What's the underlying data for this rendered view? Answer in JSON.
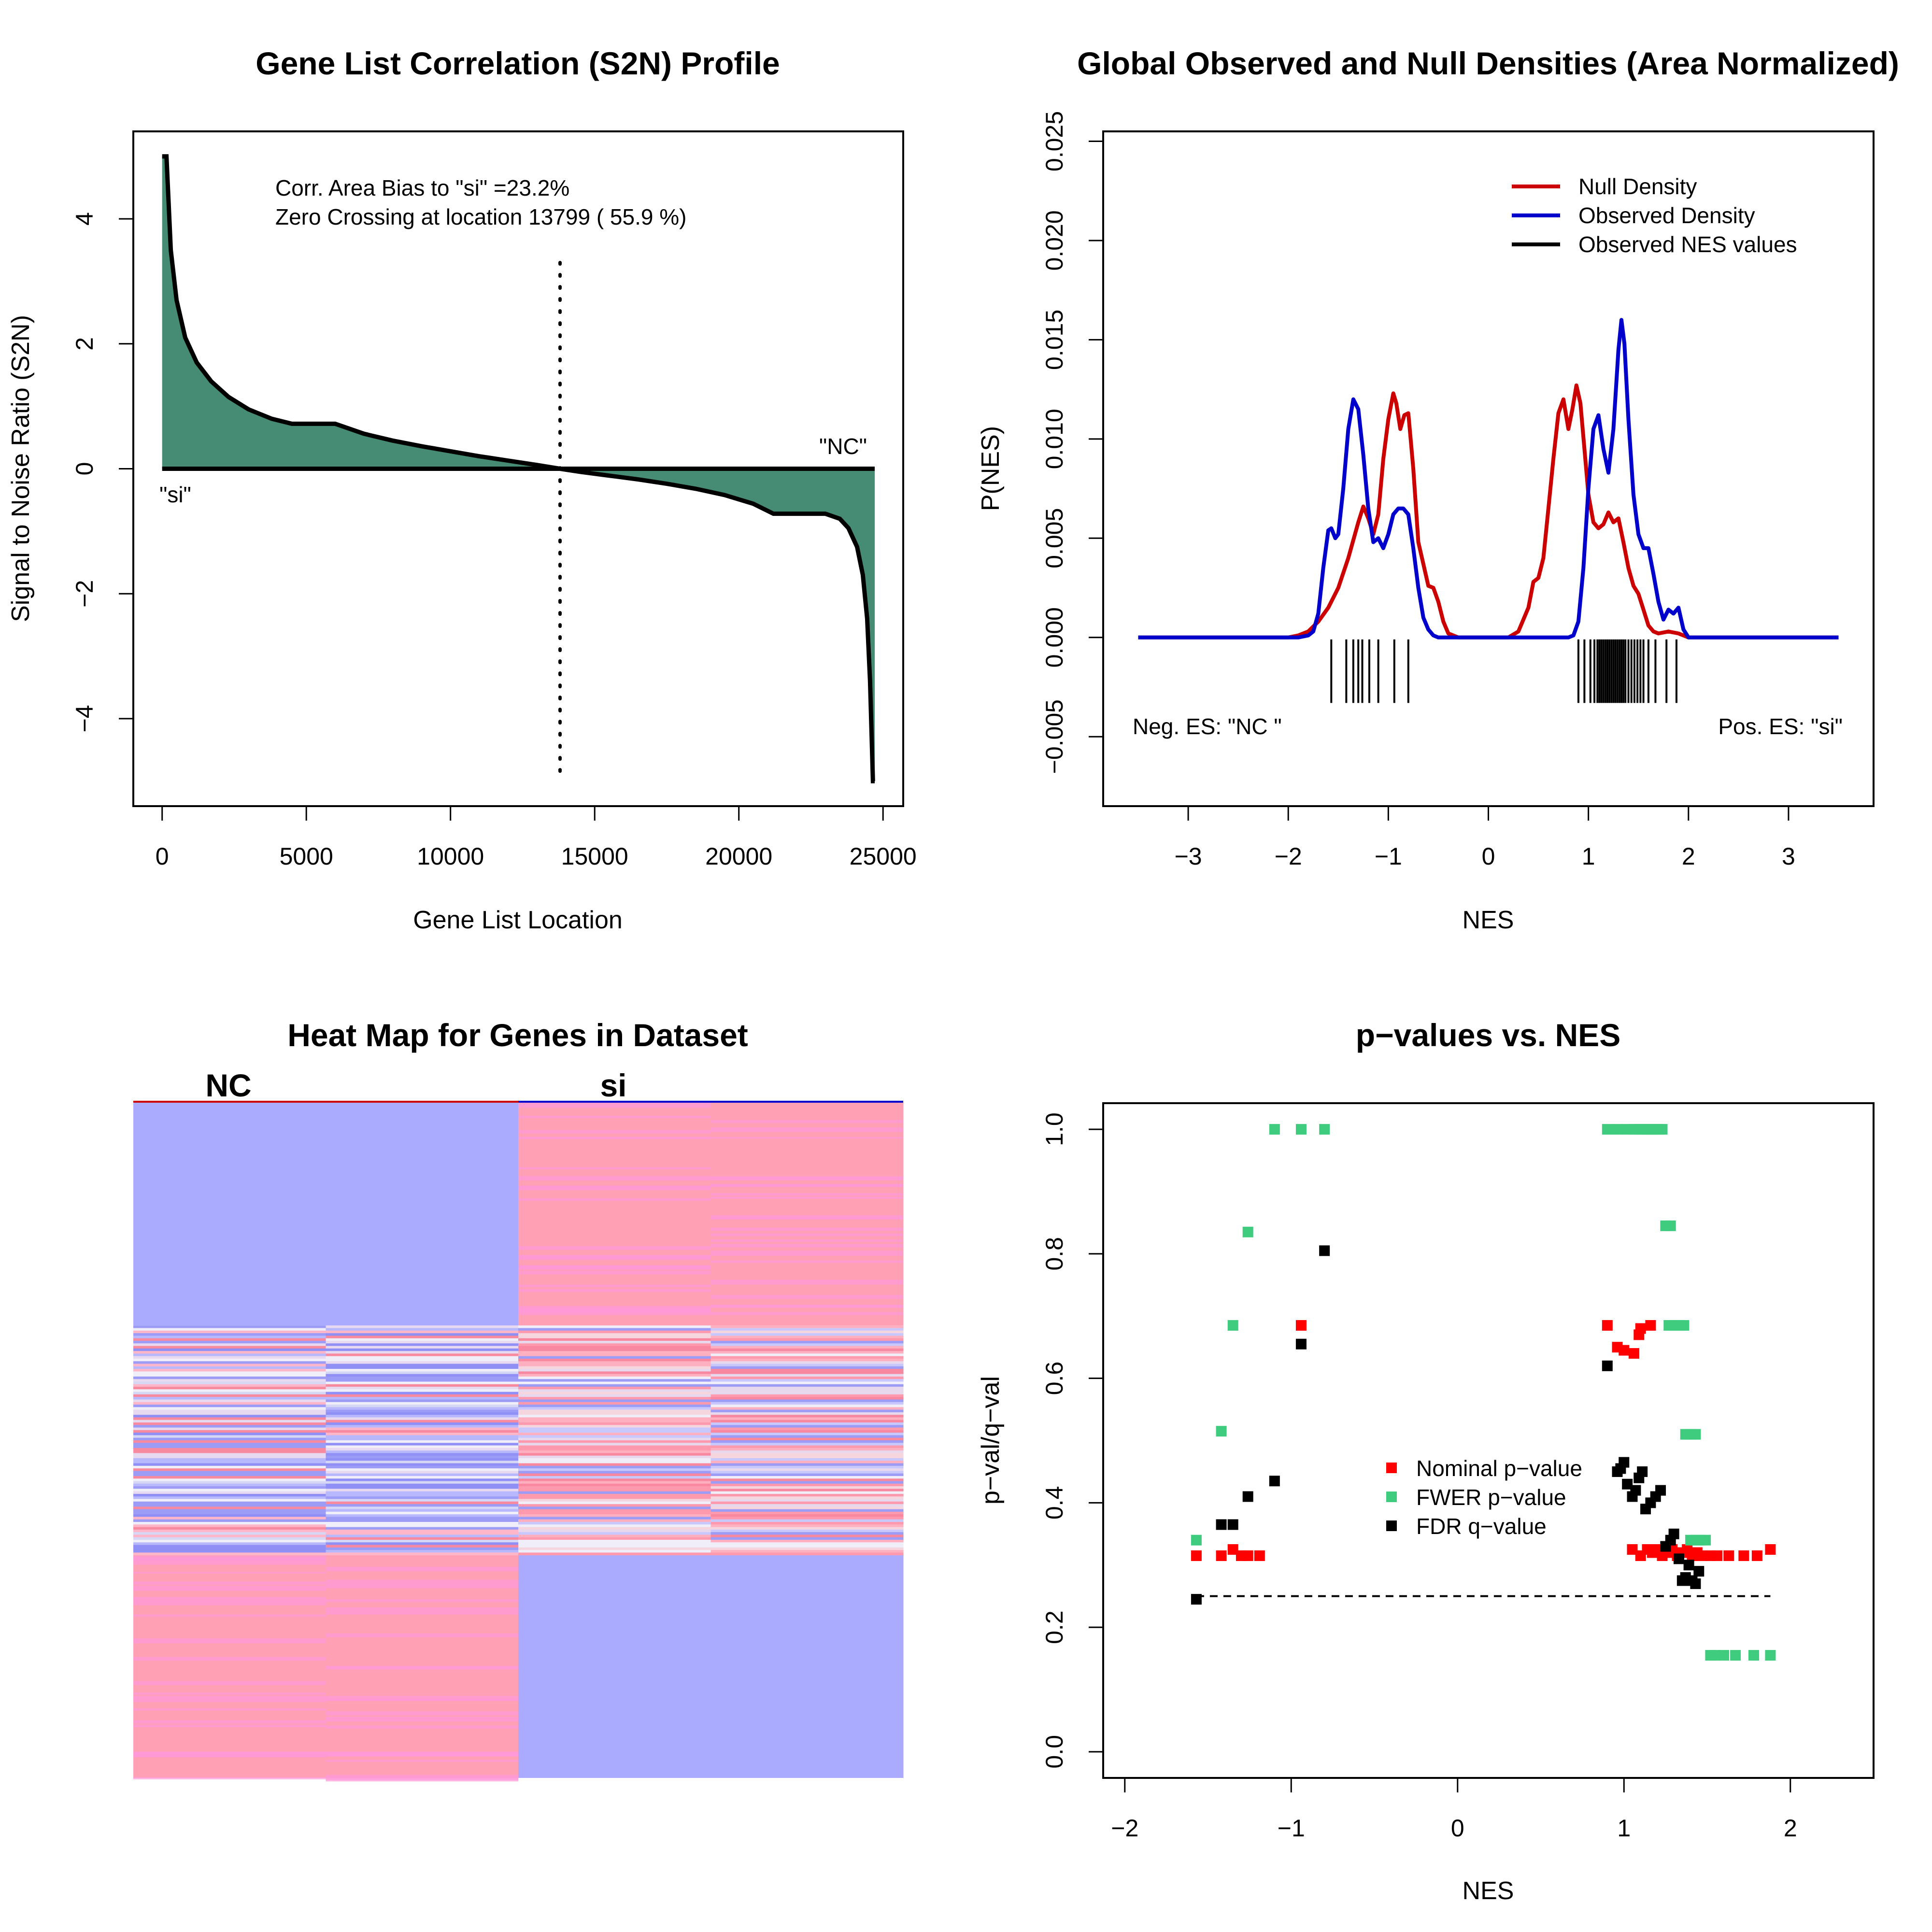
{
  "colors": {
    "area_fill": "#468b73",
    "null_density": "#cc0000",
    "observed_density": "#0000cc",
    "nominal": "#ff0000",
    "fwer": "#3fcc7f",
    "fdr": "#000000",
    "heat_blue": "#aaaaff",
    "heat_red": "#ffa0b4",
    "heat_pink": "#ff99d9",
    "heat_white": "#f0eef8"
  },
  "chart_data": [
    {
      "id": "s2n",
      "type": "area",
      "title": "Gene List Correlation (S2N) Profile",
      "xlabel": "Gene List Location",
      "ylabel": "Signal to Noise Ratio (S2N)",
      "xlim": [
        -1000,
        25700
      ],
      "ylim": [
        -5.4,
        5.4
      ],
      "xticks": [
        0,
        5000,
        10000,
        15000,
        20000,
        25000
      ],
      "yticks": [
        -4,
        -2,
        0,
        2,
        4
      ],
      "x": [
        0,
        150,
        300,
        500,
        800,
        1200,
        1700,
        2300,
        3000,
        3800,
        4500,
        5000,
        5500,
        6000,
        7000,
        8000,
        9000,
        10000,
        11000,
        12000,
        13000,
        13799,
        14500,
        15500,
        16500,
        17500,
        18500,
        19500,
        20500,
        21200,
        22000,
        23000,
        23500,
        23800,
        24100,
        24300,
        24450,
        24550,
        24650,
        24712
      ],
      "y": [
        5.0,
        5.0,
        3.5,
        2.7,
        2.1,
        1.7,
        1.4,
        1.15,
        0.95,
        0.8,
        0.72,
        0.72,
        0.72,
        0.72,
        0.56,
        0.45,
        0.36,
        0.28,
        0.2,
        0.13,
        0.06,
        0.0,
        -0.05,
        -0.11,
        -0.17,
        -0.24,
        -0.32,
        -0.42,
        -0.56,
        -0.72,
        -0.72,
        -0.72,
        -0.8,
        -0.95,
        -1.25,
        -1.7,
        -2.4,
        -3.4,
        -5.0,
        -5.0
      ],
      "zero_crossing": 13799,
      "annotations": [
        "Corr. Area Bias to \"si\" =23.2%",
        "Zero Crossing at location  13799  ( 55.9  %)"
      ],
      "labels": {
        "left": "\"si\"",
        "right": "\"NC\""
      }
    },
    {
      "id": "densities",
      "type": "line",
      "title": "Global Observed and Null Densities (Area Normalized)",
      "xlabel": "NES",
      "ylabel": "P(NES)",
      "xlim": [
        -3.85,
        3.85
      ],
      "ylim": [
        -0.0085,
        0.0255
      ],
      "xticks": [
        -3,
        -2,
        -1,
        0,
        1,
        2,
        3
      ],
      "yticks": [
        -0.005,
        0.0,
        0.005,
        0.01,
        0.015,
        0.02,
        0.025
      ],
      "ytick_labels": [
        "−0.005",
        "0.000",
        "0.005",
        "0.010",
        "0.015",
        "0.020",
        "0.025"
      ],
      "series": [
        {
          "name": "Null Density",
          "x": [
            -3.5,
            -2.0,
            -1.9,
            -1.8,
            -1.7,
            -1.6,
            -1.5,
            -1.4,
            -1.3,
            -1.25,
            -1.2,
            -1.15,
            -1.1,
            -1.05,
            -1.0,
            -0.95,
            -0.92,
            -0.88,
            -0.84,
            -0.8,
            -0.75,
            -0.7,
            -0.65,
            -0.6,
            -0.55,
            -0.5,
            -0.45,
            -0.4,
            -0.3,
            -0.2,
            0.2,
            0.3,
            0.4,
            0.45,
            0.5,
            0.55,
            0.6,
            0.65,
            0.7,
            0.75,
            0.8,
            0.84,
            0.88,
            0.92,
            0.96,
            1.0,
            1.05,
            1.1,
            1.15,
            1.2,
            1.25,
            1.3,
            1.35,
            1.4,
            1.45,
            1.5,
            1.55,
            1.6,
            1.65,
            1.7,
            1.8,
            1.9,
            2.0,
            3.5
          ],
          "y": [
            0.0,
            0.0,
            0.0001,
            0.0003,
            0.0008,
            0.0015,
            0.0025,
            0.004,
            0.0058,
            0.0066,
            0.006,
            0.0052,
            0.0062,
            0.009,
            0.011,
            0.0123,
            0.0118,
            0.0105,
            0.0112,
            0.0113,
            0.0085,
            0.0048,
            0.0037,
            0.0026,
            0.0025,
            0.0018,
            0.0008,
            0.0002,
            0.0,
            0.0,
            0.0,
            0.0003,
            0.0015,
            0.0028,
            0.003,
            0.004,
            0.0065,
            0.009,
            0.0113,
            0.012,
            0.0105,
            0.0115,
            0.0127,
            0.0118,
            0.0095,
            0.0072,
            0.0058,
            0.0055,
            0.0057,
            0.0063,
            0.0058,
            0.006,
            0.0048,
            0.0035,
            0.0026,
            0.0022,
            0.0014,
            0.0006,
            0.0003,
            0.0002,
            0.0003,
            0.0002,
            0.0,
            0.0
          ]
        },
        {
          "name": "Observed Density",
          "x": [
            -3.5,
            -1.9,
            -1.8,
            -1.75,
            -1.7,
            -1.65,
            -1.6,
            -1.57,
            -1.53,
            -1.5,
            -1.45,
            -1.4,
            -1.35,
            -1.3,
            -1.25,
            -1.2,
            -1.15,
            -1.1,
            -1.05,
            -1.0,
            -0.95,
            -0.9,
            -0.85,
            -0.8,
            -0.75,
            -0.7,
            -0.65,
            -0.6,
            -0.55,
            -0.5,
            -0.45,
            -0.4,
            0.7,
            0.8,
            0.85,
            0.9,
            0.95,
            1.0,
            1.05,
            1.1,
            1.15,
            1.2,
            1.25,
            1.3,
            1.33,
            1.36,
            1.4,
            1.45,
            1.5,
            1.55,
            1.6,
            1.65,
            1.7,
            1.75,
            1.8,
            1.85,
            1.9,
            1.95,
            2.0,
            3.5
          ],
          "y": [
            0.0,
            0.0,
            0.0001,
            0.0003,
            0.0012,
            0.0035,
            0.0054,
            0.0055,
            0.005,
            0.0052,
            0.0075,
            0.0105,
            0.012,
            0.0115,
            0.0092,
            0.0065,
            0.0048,
            0.005,
            0.0045,
            0.0052,
            0.0062,
            0.0065,
            0.0065,
            0.0062,
            0.0045,
            0.0025,
            0.001,
            0.0004,
            0.0001,
            0.0,
            0.0,
            0.0,
            0.0,
            0.0,
            0.0001,
            0.0008,
            0.0035,
            0.0075,
            0.0105,
            0.0112,
            0.0095,
            0.0083,
            0.0105,
            0.0145,
            0.016,
            0.0148,
            0.011,
            0.0072,
            0.0052,
            0.0045,
            0.0045,
            0.0032,
            0.0018,
            0.0009,
            0.0014,
            0.0012,
            0.0015,
            0.0004,
            0.0,
            0.0
          ]
        }
      ],
      "observed_nes": [
        -1.57,
        -1.42,
        -1.35,
        -1.3,
        -1.26,
        -1.19,
        -1.1,
        -0.94,
        -0.8,
        0.9,
        0.96,
        1.02,
        1.06,
        1.09,
        1.11,
        1.13,
        1.15,
        1.17,
        1.19,
        1.21,
        1.23,
        1.25,
        1.27,
        1.29,
        1.31,
        1.33,
        1.35,
        1.37,
        1.4,
        1.43,
        1.46,
        1.49,
        1.52,
        1.55,
        1.6,
        1.67,
        1.78,
        1.88
      ],
      "legend": [
        "Null Density",
        "Observed Density",
        "Observed NES values"
      ],
      "legend_position": "top-right",
      "annotations": {
        "left": "Neg. ES: \"NC \"",
        "right": "Pos. ES: \"si\""
      }
    },
    {
      "id": "heatmap",
      "type": "heatmap",
      "title": "Heat Map for Genes in Dataset",
      "column_groups": [
        {
          "label": "NC",
          "color": "#cc0000"
        },
        {
          "label": "si",
          "color": "#0000cc"
        }
      ],
      "columns": 4,
      "blocks": [
        {
          "rows": 0.33,
          "pattern": [
            "blue",
            "blue",
            "red",
            "red"
          ]
        },
        {
          "rows": 0.34,
          "pattern": [
            "mixed",
            "mixed",
            "mixed",
            "mixed"
          ]
        },
        {
          "rows": 0.33,
          "pattern": [
            "red",
            "red",
            "blue",
            "blue"
          ]
        }
      ]
    },
    {
      "id": "pvals",
      "type": "scatter",
      "title": "p−values vs. NES",
      "xlabel": "NES",
      "ylabel": "p−val/q−val",
      "xlim": [
        -2.13,
        2.5
      ],
      "ylim": [
        -0.042,
        1.042
      ],
      "xticks": [
        -2,
        -1,
        0,
        1,
        2
      ],
      "yticks": [
        0.0,
        0.2,
        0.4,
        0.6,
        0.8,
        1.0
      ],
      "threshold": {
        "y": 0.25,
        "x": [
          -1.57,
          1.88
        ]
      },
      "legend": [
        "Nominal p−value",
        "FWER p−value",
        "FDR q−value"
      ],
      "legend_position": "center",
      "series": [
        {
          "name": "Nominal p−value",
          "points": [
            [
              -1.57,
              0.315
            ],
            [
              -1.42,
              0.315
            ],
            [
              -1.35,
              0.325
            ],
            [
              -1.3,
              0.315
            ],
            [
              -1.26,
              0.315
            ],
            [
              -1.19,
              0.315
            ],
            [
              -0.94,
              0.685
            ],
            [
              0.9,
              0.685
            ],
            [
              0.96,
              0.65
            ],
            [
              1.0,
              0.645
            ],
            [
              1.06,
              0.64
            ],
            [
              1.09,
              0.67
            ],
            [
              1.1,
              0.68
            ],
            [
              1.16,
              0.685
            ],
            [
              1.05,
              0.325
            ],
            [
              1.1,
              0.315
            ],
            [
              1.14,
              0.325
            ],
            [
              1.17,
              0.32
            ],
            [
              1.2,
              0.325
            ],
            [
              1.23,
              0.315
            ],
            [
              1.26,
              0.32
            ],
            [
              1.29,
              0.325
            ],
            [
              1.32,
              0.315
            ],
            [
              1.35,
              0.32
            ],
            [
              1.38,
              0.325
            ],
            [
              1.41,
              0.315
            ],
            [
              1.44,
              0.32
            ],
            [
              1.47,
              0.315
            ],
            [
              1.52,
              0.315
            ],
            [
              1.56,
              0.315
            ],
            [
              1.63,
              0.315
            ],
            [
              1.72,
              0.315
            ],
            [
              1.8,
              0.315
            ],
            [
              1.88,
              0.325
            ]
          ]
        },
        {
          "name": "FWER p−value",
          "points": [
            [
              -1.57,
              0.34
            ],
            [
              -1.42,
              0.515
            ],
            [
              -1.35,
              0.685
            ],
            [
              -1.26,
              0.835
            ],
            [
              -1.1,
              1.0
            ],
            [
              -0.94,
              1.0
            ],
            [
              -0.8,
              1.0
            ],
            [
              0.9,
              1.0
            ],
            [
              0.96,
              1.0
            ],
            [
              1.02,
              1.0
            ],
            [
              1.06,
              1.0
            ],
            [
              1.09,
              1.0
            ],
            [
              1.11,
              1.0
            ],
            [
              1.13,
              1.0
            ],
            [
              1.15,
              1.0
            ],
            [
              1.17,
              1.0
            ],
            [
              1.19,
              1.0
            ],
            [
              1.21,
              1.0
            ],
            [
              1.23,
              1.0
            ],
            [
              1.25,
              0.845
            ],
            [
              1.28,
              0.845
            ],
            [
              1.27,
              0.685
            ],
            [
              1.3,
              0.685
            ],
            [
              1.33,
              0.685
            ],
            [
              1.36,
              0.685
            ],
            [
              1.37,
              0.51
            ],
            [
              1.4,
              0.51
            ],
            [
              1.43,
              0.51
            ],
            [
              1.4,
              0.34
            ],
            [
              1.43,
              0.34
            ],
            [
              1.46,
              0.34
            ],
            [
              1.49,
              0.34
            ],
            [
              1.52,
              0.155
            ],
            [
              1.55,
              0.155
            ],
            [
              1.6,
              0.155
            ],
            [
              1.67,
              0.155
            ],
            [
              1.78,
              0.155
            ],
            [
              1.88,
              0.155
            ]
          ]
        },
        {
          "name": "FDR q−value",
          "points": [
            [
              -1.57,
              0.245
            ],
            [
              -1.42,
              0.365
            ],
            [
              -1.35,
              0.365
            ],
            [
              -1.26,
              0.41
            ],
            [
              -1.1,
              0.435
            ],
            [
              -0.94,
              0.655
            ],
            [
              -0.8,
              0.805
            ],
            [
              0.9,
              0.62
            ],
            [
              0.96,
              0.45
            ],
            [
              0.98,
              0.455
            ],
            [
              1.0,
              0.465
            ],
            [
              1.02,
              0.43
            ],
            [
              1.05,
              0.41
            ],
            [
              1.07,
              0.42
            ],
            [
              1.09,
              0.44
            ],
            [
              1.11,
              0.45
            ],
            [
              1.13,
              0.39
            ],
            [
              1.16,
              0.4
            ],
            [
              1.19,
              0.41
            ],
            [
              1.22,
              0.42
            ],
            [
              1.25,
              0.33
            ],
            [
              1.28,
              0.34
            ],
            [
              1.3,
              0.35
            ],
            [
              1.33,
              0.31
            ],
            [
              1.35,
              0.275
            ],
            [
              1.37,
              0.28
            ],
            [
              1.39,
              0.3
            ],
            [
              1.41,
              0.275
            ],
            [
              1.43,
              0.27
            ],
            [
              1.45,
              0.29
            ]
          ]
        }
      ]
    }
  ]
}
